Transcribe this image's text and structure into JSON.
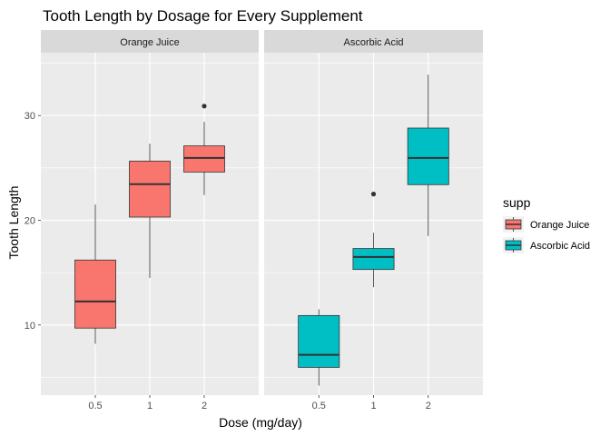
{
  "chart_data": {
    "type": "boxplot",
    "title": "Tooth Length by Dosage for Every Supplement",
    "xlabel": "Dose (mg/day)",
    "ylabel": "Tooth Length",
    "ylim": [
      3.3,
      36.0
    ],
    "yticks": [
      10,
      20,
      30
    ],
    "categories": [
      "0.5",
      "1",
      "2"
    ],
    "legend": {
      "title": "supp",
      "position": "right",
      "entries": [
        {
          "label": "Orange Juice",
          "color": "#F8766D"
        },
        {
          "label": "Ascorbic Acid",
          "color": "#00BFC4"
        }
      ]
    },
    "facets": [
      {
        "label": "Orange Juice",
        "color": "#F8766D",
        "boxes": [
          {
            "x": "0.5",
            "min": 8.2,
            "q1": 9.7,
            "median": 12.25,
            "q3": 16.2,
            "max": 21.5,
            "outliers": []
          },
          {
            "x": "1",
            "min": 14.5,
            "q1": 20.3,
            "median": 23.45,
            "q3": 25.65,
            "max": 27.3,
            "outliers": []
          },
          {
            "x": "2",
            "min": 22.4,
            "q1": 24.6,
            "median": 25.95,
            "q3": 27.1,
            "max": 29.4,
            "outliers": [
              30.9
            ]
          }
        ]
      },
      {
        "label": "Ascorbic Acid",
        "color": "#00BFC4",
        "boxes": [
          {
            "x": "0.5",
            "min": 4.2,
            "q1": 5.95,
            "median": 7.15,
            "q3": 10.9,
            "max": 11.5,
            "outliers": []
          },
          {
            "x": "1",
            "min": 13.6,
            "q1": 15.3,
            "median": 16.5,
            "q3": 17.3,
            "max": 18.8,
            "outliers": [
              22.5
            ]
          },
          {
            "x": "2",
            "min": 18.5,
            "q1": 23.4,
            "median": 25.95,
            "q3": 28.8,
            "max": 33.9,
            "outliers": []
          }
        ]
      }
    ],
    "grid": true,
    "panel_background": "#EBEBEB",
    "strip_background": "#D9D9D9"
  }
}
